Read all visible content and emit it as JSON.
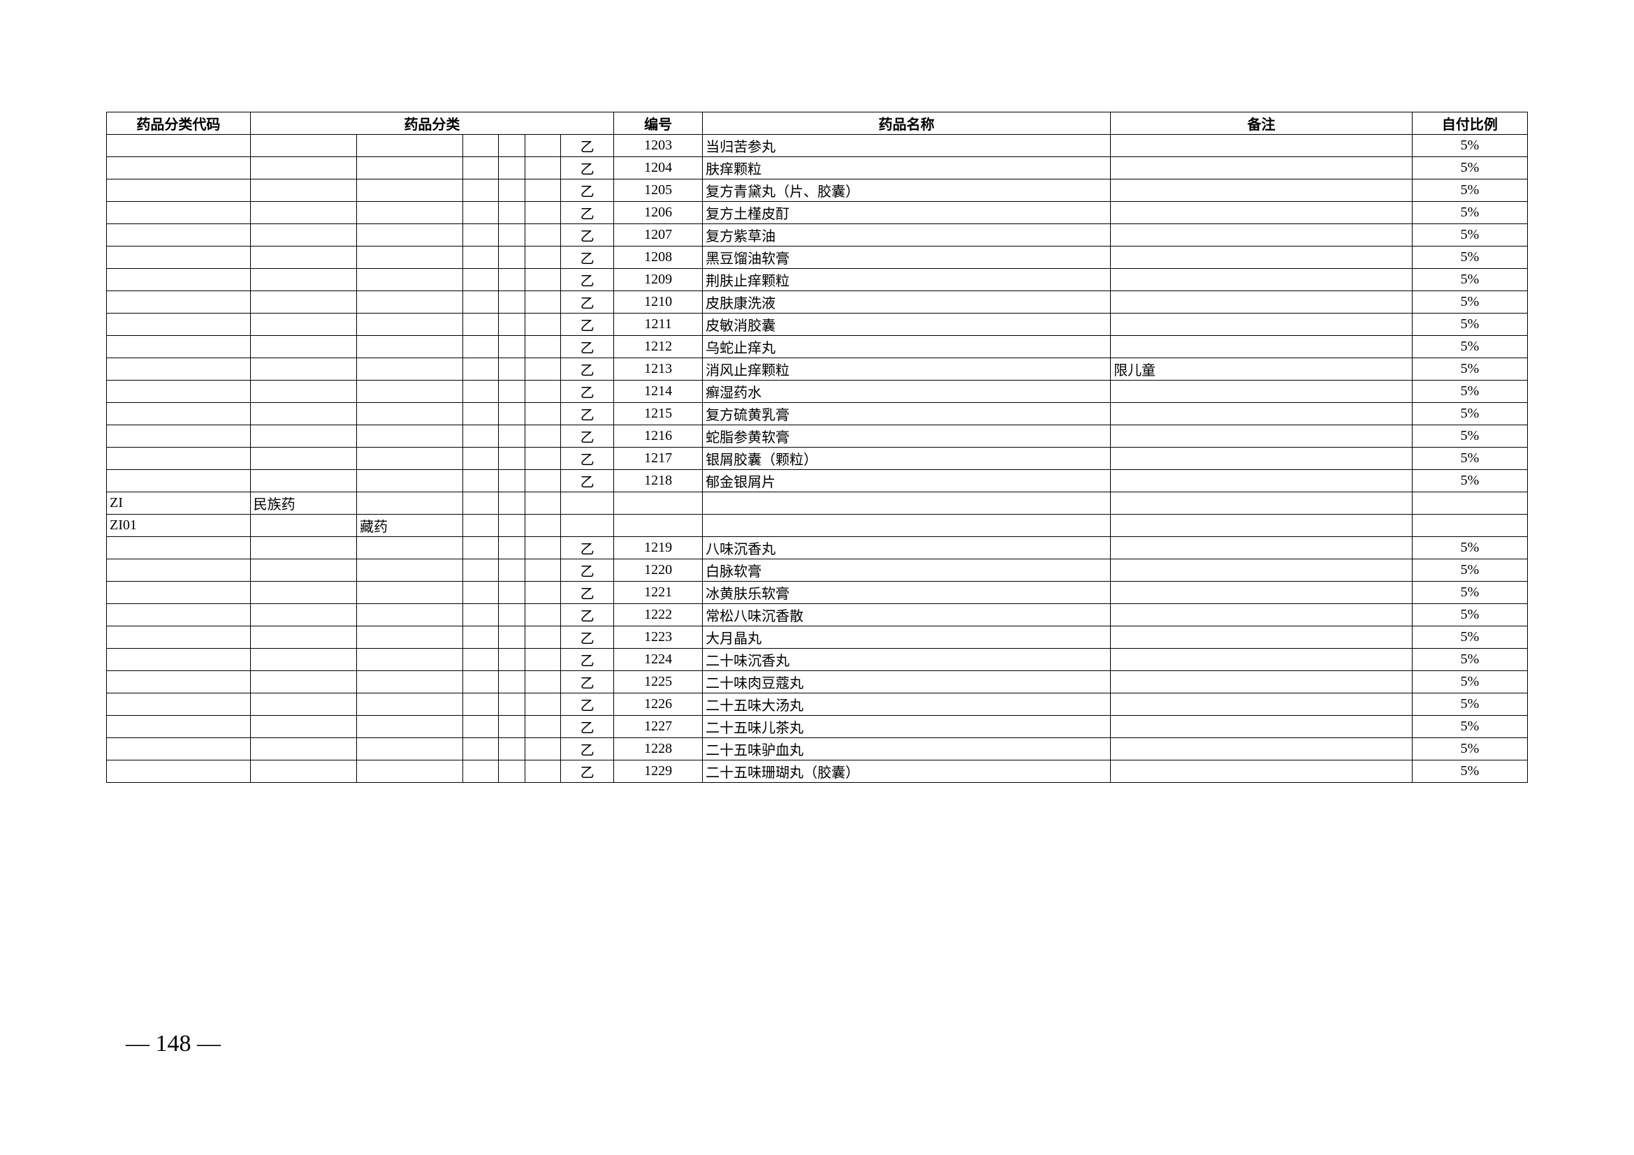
{
  "table": {
    "headers": {
      "code": "药品分类代码",
      "category": "药品分类",
      "number": "编号",
      "name": "药品名称",
      "remark": "备注",
      "ratio": "自付比例"
    },
    "rows": [
      {
        "code": "",
        "cat1": "",
        "cat2": "",
        "cat3": "",
        "cat4": "",
        "cat5": "",
        "cls": "乙",
        "num": "1203",
        "name": "当归苦参丸",
        "remark": "",
        "ratio": "5%"
      },
      {
        "code": "",
        "cat1": "",
        "cat2": "",
        "cat3": "",
        "cat4": "",
        "cat5": "",
        "cls": "乙",
        "num": "1204",
        "name": "肤痒颗粒",
        "remark": "",
        "ratio": "5%"
      },
      {
        "code": "",
        "cat1": "",
        "cat2": "",
        "cat3": "",
        "cat4": "",
        "cat5": "",
        "cls": "乙",
        "num": "1205",
        "name": "复方青黛丸（片、胶囊）",
        "remark": "",
        "ratio": "5%"
      },
      {
        "code": "",
        "cat1": "",
        "cat2": "",
        "cat3": "",
        "cat4": "",
        "cat5": "",
        "cls": "乙",
        "num": "1206",
        "name": "复方土槿皮酊",
        "remark": "",
        "ratio": "5%"
      },
      {
        "code": "",
        "cat1": "",
        "cat2": "",
        "cat3": "",
        "cat4": "",
        "cat5": "",
        "cls": "乙",
        "num": "1207",
        "name": "复方紫草油",
        "remark": "",
        "ratio": "5%"
      },
      {
        "code": "",
        "cat1": "",
        "cat2": "",
        "cat3": "",
        "cat4": "",
        "cat5": "",
        "cls": "乙",
        "num": "1208",
        "name": "黑豆馏油软膏",
        "remark": "",
        "ratio": "5%"
      },
      {
        "code": "",
        "cat1": "",
        "cat2": "",
        "cat3": "",
        "cat4": "",
        "cat5": "",
        "cls": "乙",
        "num": "1209",
        "name": "荆肤止痒颗粒",
        "remark": "",
        "ratio": "5%"
      },
      {
        "code": "",
        "cat1": "",
        "cat2": "",
        "cat3": "",
        "cat4": "",
        "cat5": "",
        "cls": "乙",
        "num": "1210",
        "name": "皮肤康洗液",
        "remark": "",
        "ratio": "5%"
      },
      {
        "code": "",
        "cat1": "",
        "cat2": "",
        "cat3": "",
        "cat4": "",
        "cat5": "",
        "cls": "乙",
        "num": "1211",
        "name": "皮敏消胶囊",
        "remark": "",
        "ratio": "5%"
      },
      {
        "code": "",
        "cat1": "",
        "cat2": "",
        "cat3": "",
        "cat4": "",
        "cat5": "",
        "cls": "乙",
        "num": "1212",
        "name": "乌蛇止痒丸",
        "remark": "",
        "ratio": "5%"
      },
      {
        "code": "",
        "cat1": "",
        "cat2": "",
        "cat3": "",
        "cat4": "",
        "cat5": "",
        "cls": "乙",
        "num": "1213",
        "name": "消风止痒颗粒",
        "remark": "限儿童",
        "ratio": "5%"
      },
      {
        "code": "",
        "cat1": "",
        "cat2": "",
        "cat3": "",
        "cat4": "",
        "cat5": "",
        "cls": "乙",
        "num": "1214",
        "name": "癣湿药水",
        "remark": "",
        "ratio": "5%"
      },
      {
        "code": "",
        "cat1": "",
        "cat2": "",
        "cat3": "",
        "cat4": "",
        "cat5": "",
        "cls": "乙",
        "num": "1215",
        "name": "复方硫黄乳膏",
        "remark": "",
        "ratio": "5%"
      },
      {
        "code": "",
        "cat1": "",
        "cat2": "",
        "cat3": "",
        "cat4": "",
        "cat5": "",
        "cls": "乙",
        "num": "1216",
        "name": "蛇脂参黄软膏",
        "remark": "",
        "ratio": "5%"
      },
      {
        "code": "",
        "cat1": "",
        "cat2": "",
        "cat3": "",
        "cat4": "",
        "cat5": "",
        "cls": "乙",
        "num": "1217",
        "name": "银屑胶囊（颗粒）",
        "remark": "",
        "ratio": "5%"
      },
      {
        "code": "",
        "cat1": "",
        "cat2": "",
        "cat3": "",
        "cat4": "",
        "cat5": "",
        "cls": "乙",
        "num": "1218",
        "name": "郁金银屑片",
        "remark": "",
        "ratio": "5%"
      },
      {
        "code": "ZI",
        "cat1": "民族药",
        "cat2": "",
        "cat3": "",
        "cat4": "",
        "cat5": "",
        "cls": "",
        "num": "",
        "name": "",
        "remark": "",
        "ratio": ""
      },
      {
        "code": "ZI01",
        "cat1": "",
        "cat2": "藏药",
        "cat3": "",
        "cat4": "",
        "cat5": "",
        "cls": "",
        "num": "",
        "name": "",
        "remark": "",
        "ratio": ""
      },
      {
        "code": "",
        "cat1": "",
        "cat2": "",
        "cat3": "",
        "cat4": "",
        "cat5": "",
        "cls": "乙",
        "num": "1219",
        "name": "八味沉香丸",
        "remark": "",
        "ratio": "5%"
      },
      {
        "code": "",
        "cat1": "",
        "cat2": "",
        "cat3": "",
        "cat4": "",
        "cat5": "",
        "cls": "乙",
        "num": "1220",
        "name": "白脉软膏",
        "remark": "",
        "ratio": "5%"
      },
      {
        "code": "",
        "cat1": "",
        "cat2": "",
        "cat3": "",
        "cat4": "",
        "cat5": "",
        "cls": "乙",
        "num": "1221",
        "name": "冰黄肤乐软膏",
        "remark": "",
        "ratio": "5%"
      },
      {
        "code": "",
        "cat1": "",
        "cat2": "",
        "cat3": "",
        "cat4": "",
        "cat5": "",
        "cls": "乙",
        "num": "1222",
        "name": "常松八味沉香散",
        "remark": "",
        "ratio": "5%"
      },
      {
        "code": "",
        "cat1": "",
        "cat2": "",
        "cat3": "",
        "cat4": "",
        "cat5": "",
        "cls": "乙",
        "num": "1223",
        "name": "大月晶丸",
        "remark": "",
        "ratio": "5%"
      },
      {
        "code": "",
        "cat1": "",
        "cat2": "",
        "cat3": "",
        "cat4": "",
        "cat5": "",
        "cls": "乙",
        "num": "1224",
        "name": "二十味沉香丸",
        "remark": "",
        "ratio": "5%"
      },
      {
        "code": "",
        "cat1": "",
        "cat2": "",
        "cat3": "",
        "cat4": "",
        "cat5": "",
        "cls": "乙",
        "num": "1225",
        "name": "二十味肉豆蔻丸",
        "remark": "",
        "ratio": "5%"
      },
      {
        "code": "",
        "cat1": "",
        "cat2": "",
        "cat3": "",
        "cat4": "",
        "cat5": "",
        "cls": "乙",
        "num": "1226",
        "name": "二十五味大汤丸",
        "remark": "",
        "ratio": "5%"
      },
      {
        "code": "",
        "cat1": "",
        "cat2": "",
        "cat3": "",
        "cat4": "",
        "cat5": "",
        "cls": "乙",
        "num": "1227",
        "name": "二十五味儿茶丸",
        "remark": "",
        "ratio": "5%"
      },
      {
        "code": "",
        "cat1": "",
        "cat2": "",
        "cat3": "",
        "cat4": "",
        "cat5": "",
        "cls": "乙",
        "num": "1228",
        "name": "二十五味驴血丸",
        "remark": "",
        "ratio": "5%"
      },
      {
        "code": "",
        "cat1": "",
        "cat2": "",
        "cat3": "",
        "cat4": "",
        "cat5": "",
        "cls": "乙",
        "num": "1229",
        "name": "二十五味珊瑚丸（胶囊）",
        "remark": "",
        "ratio": "5%"
      }
    ]
  },
  "pageNumber": "— 148 —"
}
